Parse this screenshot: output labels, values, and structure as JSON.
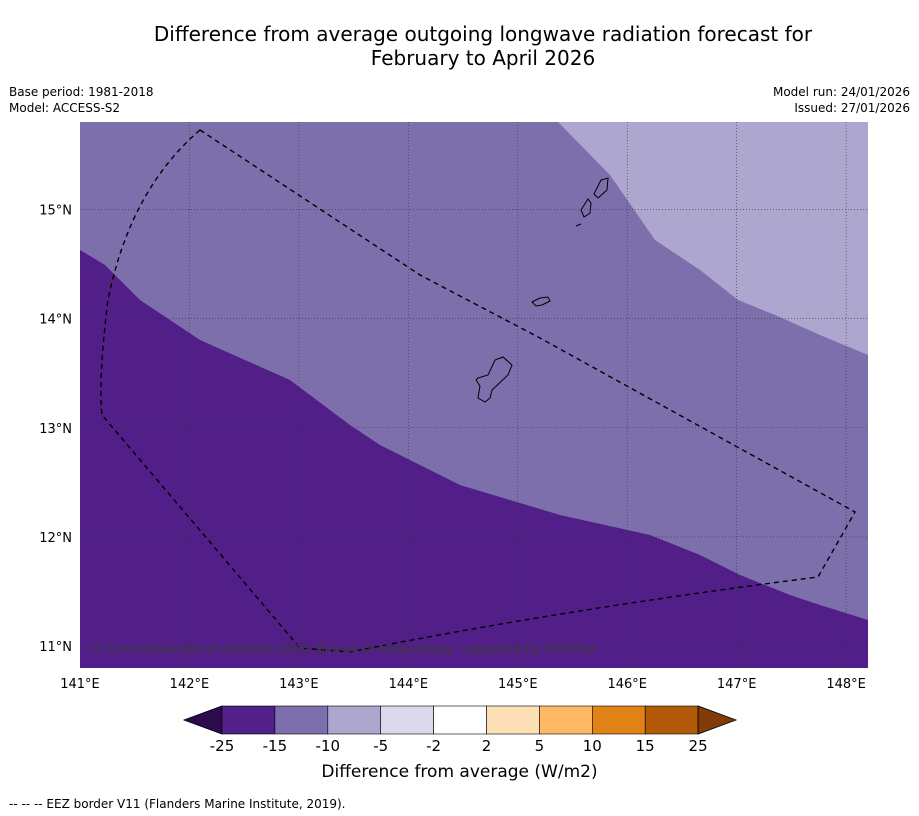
{
  "title_line1": "Difference from average outgoing longwave radiation forecast for",
  "title_line2": "February to April 2026",
  "meta_left": {
    "base_period": "Base period: 1981-2018",
    "model": "Model: ACCESS-S2"
  },
  "meta_right": {
    "model_run": "Model run: 24/01/2026",
    "issued": "Issued: 27/01/2026"
  },
  "map": {
    "lon_labels": [
      "141°E",
      "142°E",
      "143°E",
      "144°E",
      "145°E",
      "146°E",
      "147°E",
      "148°E"
    ],
    "lat_labels": [
      "15°N",
      "14°N",
      "13°N",
      "12°N",
      "11°N"
    ],
    "copyright": "© Commonwealth of Australia 2026, Bureau of Meteorology, supported by COSPPac",
    "extent": {
      "lon": [
        141.0,
        148.2
      ],
      "lat": [
        10.8,
        15.8
      ]
    }
  },
  "colorbar": {
    "ticks": [
      "-25",
      "-15",
      "-10",
      "-5",
      "-2",
      "2",
      "5",
      "10",
      "15",
      "25"
    ],
    "colors": [
      "#521f89",
      "#7d6fab",
      "#ada6cf",
      "#d9d8ec",
      "#ffffff",
      "#fde0b6",
      "#fcb862",
      "#e18215",
      "#b35806"
    ],
    "extend_low": "#2c0a4b",
    "extend_high": "#7f3b08",
    "label": "Difference from average (W/m2)"
  },
  "footnote": "--  --  -- EEZ border V11 (Flanders Marine Institute, 2019)."
}
